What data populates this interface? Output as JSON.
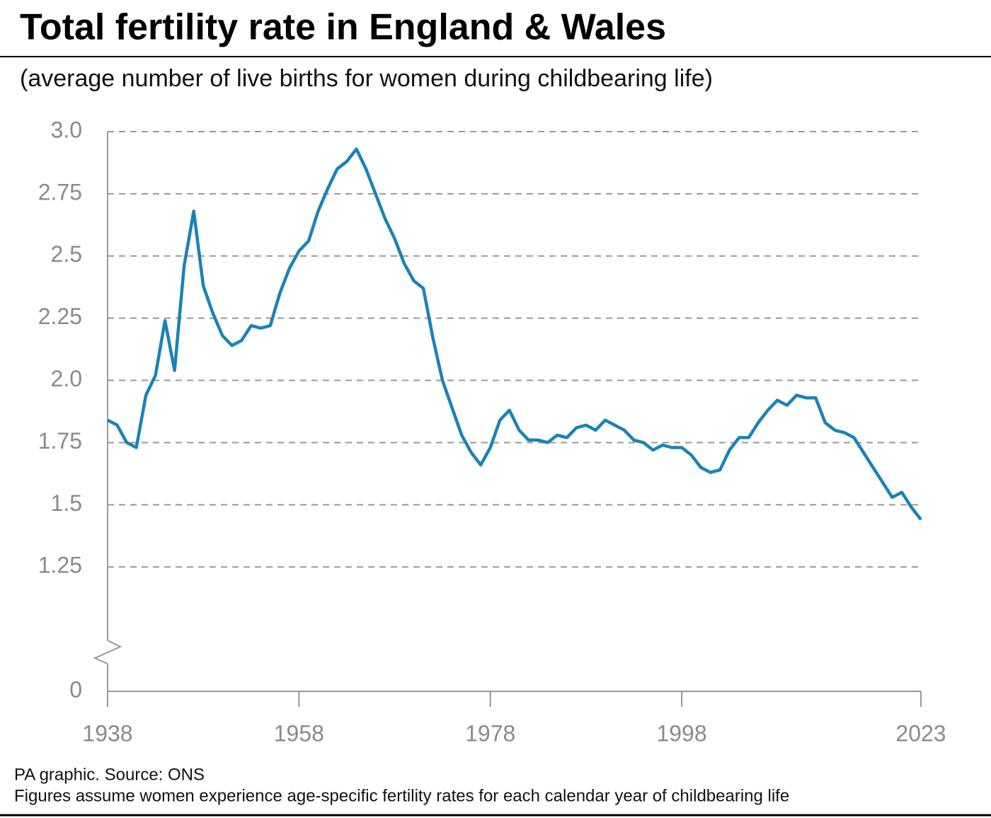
{
  "chart_data": {
    "type": "line",
    "title": "Total fertility rate in England & Wales",
    "subtitle": "(average number of live births for women during childbearing life)",
    "source": "PA graphic. Source: ONS",
    "note": "Figures assume women experience age-specific fertility rates for each calendar year of childbearing life",
    "x": [
      1938,
      1939,
      1940,
      1941,
      1942,
      1943,
      1944,
      1945,
      1946,
      1947,
      1948,
      1949,
      1950,
      1951,
      1952,
      1953,
      1954,
      1955,
      1956,
      1957,
      1958,
      1959,
      1960,
      1961,
      1962,
      1963,
      1964,
      1965,
      1966,
      1967,
      1968,
      1969,
      1970,
      1971,
      1972,
      1973,
      1974,
      1975,
      1976,
      1977,
      1978,
      1979,
      1980,
      1981,
      1982,
      1983,
      1984,
      1985,
      1986,
      1987,
      1988,
      1989,
      1990,
      1991,
      1992,
      1993,
      1994,
      1995,
      1996,
      1997,
      1998,
      1999,
      2000,
      2001,
      2002,
      2003,
      2004,
      2005,
      2006,
      2007,
      2008,
      2009,
      2010,
      2011,
      2012,
      2013,
      2014,
      2015,
      2016,
      2017,
      2018,
      2019,
      2020,
      2021,
      2022,
      2023
    ],
    "series": [
      {
        "color": "#1a82b8",
        "values": [
          1.84,
          1.82,
          1.75,
          1.73,
          1.94,
          2.02,
          2.24,
          2.04,
          2.46,
          2.68,
          2.38,
          2.27,
          2.18,
          2.14,
          2.16,
          2.22,
          2.21,
          2.22,
          2.35,
          2.45,
          2.52,
          2.56,
          2.68,
          2.77,
          2.85,
          2.88,
          2.93,
          2.85,
          2.75,
          2.65,
          2.57,
          2.47,
          2.4,
          2.37,
          2.17,
          2.0,
          1.89,
          1.78,
          1.71,
          1.66,
          1.73,
          1.84,
          1.88,
          1.8,
          1.76,
          1.76,
          1.75,
          1.78,
          1.77,
          1.81,
          1.82,
          1.8,
          1.84,
          1.82,
          1.8,
          1.76,
          1.75,
          1.72,
          1.74,
          1.73,
          1.73,
          1.7,
          1.65,
          1.63,
          1.64,
          1.72,
          1.77,
          1.77,
          1.83,
          1.88,
          1.92,
          1.9,
          1.94,
          1.93,
          1.93,
          1.83,
          1.8,
          1.79,
          1.77,
          1.71,
          1.65,
          1.59,
          1.53,
          1.55,
          1.49,
          1.44
        ]
      }
    ],
    "xlim": [
      1938,
      2023
    ],
    "xticks": [
      1938,
      1958,
      1978,
      1998,
      2023
    ],
    "ylim": [
      0,
      3
    ],
    "ybreak": [
      0,
      1
    ],
    "yticks": [
      0,
      1.25,
      1.5,
      1.75,
      {
        "value": 2,
        "label": "2.0"
      },
      2.25,
      {
        "value": 2.5,
        "label": "2.5"
      },
      2.75,
      {
        "value": 3,
        "label": "3.0"
      }
    ],
    "grid": true
  }
}
